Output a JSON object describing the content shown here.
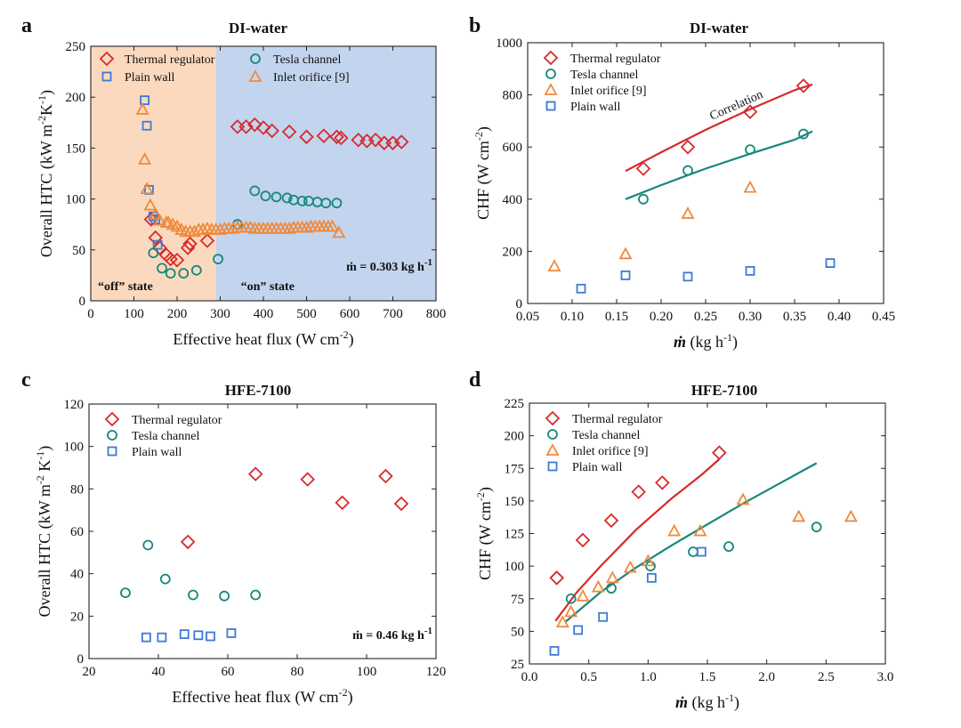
{
  "colors": {
    "thermal": "#d62b2b",
    "tesla": "#17877c",
    "orifice": "#ee8a3c",
    "plain": "#3b7ad6",
    "off_bg": "#fbd9bf",
    "on_bg": "#c3d4ee"
  },
  "chart_data": [
    {
      "panel": "a",
      "type": "scatter",
      "title": "DI-water",
      "xlabel": "Effective heat flux (W cm",
      "xlabel_sup": "-2",
      "xlabel_end": ")",
      "ylabel": "Overall HTC (kW m",
      "ylabel_sup1": "-2",
      "ylabel_mid": "K",
      "ylabel_sup2": "-1",
      "ylabel_end": ")",
      "xlim": [
        0,
        800
      ],
      "ylim": [
        0,
        250
      ],
      "xticks": [
        0,
        100,
        200,
        300,
        400,
        500,
        600,
        700,
        800
      ],
      "yticks": [
        0,
        50,
        100,
        150,
        200,
        250
      ],
      "regions": [
        {
          "label": "“off” state",
          "x0": 0,
          "x1": 290,
          "color_key": "off_bg"
        },
        {
          "label": "“on” state",
          "x0": 290,
          "x1": 800,
          "color_key": "on_bg"
        }
      ],
      "annotation": {
        "text": "ṁ = 0.303 kg h",
        "sup": "-1"
      },
      "legend_layout": "two-column-top",
      "series": [
        {
          "name": "Thermal regulator",
          "marker": "diamond",
          "color_key": "thermal",
          "points": [
            [
              140,
              80
            ],
            [
              150,
              62
            ],
            [
              160,
              52
            ],
            [
              175,
              45
            ],
            [
              185,
              41
            ],
            [
              200,
              40
            ],
            [
              225,
              52
            ],
            [
              230,
              56
            ],
            [
              270,
              59
            ],
            [
              340,
              171
            ],
            [
              360,
              171
            ],
            [
              380,
              173
            ],
            [
              400,
              170
            ],
            [
              420,
              167
            ],
            [
              460,
              166
            ],
            [
              500,
              161
            ],
            [
              540,
              162
            ],
            [
              570,
              161
            ],
            [
              580,
              160
            ],
            [
              620,
              158
            ],
            [
              640,
              157
            ],
            [
              660,
              158
            ],
            [
              680,
              155
            ],
            [
              700,
              155
            ],
            [
              720,
              156
            ]
          ]
        },
        {
          "name": "Plain wall",
          "marker": "square",
          "color_key": "plain",
          "points": [
            [
              125,
              197
            ],
            [
              130,
              172
            ],
            [
              135,
              109
            ],
            [
              145,
              83
            ],
            [
              150,
              80
            ],
            [
              155,
              55
            ]
          ]
        },
        {
          "name": "Tesla channel",
          "marker": "circle",
          "color_key": "tesla",
          "points": [
            [
              145,
              47
            ],
            [
              165,
              32
            ],
            [
              185,
              27
            ],
            [
              215,
              27
            ],
            [
              245,
              30
            ],
            [
              295,
              41
            ],
            [
              340,
              75
            ],
            [
              380,
              108
            ],
            [
              405,
              103
            ],
            [
              430,
              102
            ],
            [
              455,
              101
            ],
            [
              470,
              99
            ],
            [
              490,
              98
            ],
            [
              505,
              98
            ],
            [
              525,
              97
            ],
            [
              545,
              96
            ],
            [
              570,
              96
            ]
          ]
        },
        {
          "name": "Inlet orifice [9]",
          "marker": "triangle",
          "color_key": "orifice",
          "points": [
            [
              120,
              188
            ],
            [
              125,
              139
            ],
            [
              130,
              110
            ],
            [
              138,
              94
            ],
            [
              150,
              85
            ],
            [
              160,
              79
            ],
            [
              175,
              77
            ],
            [
              180,
              77
            ],
            [
              190,
              75
            ],
            [
              200,
              73
            ],
            [
              210,
              70
            ],
            [
              220,
              68
            ],
            [
              230,
              68
            ],
            [
              240,
              68
            ],
            [
              250,
              70
            ],
            [
              260,
              70
            ],
            [
              270,
              71
            ],
            [
              280,
              70
            ],
            [
              290,
              70
            ],
            [
              300,
              70
            ],
            [
              310,
              71
            ],
            [
              320,
              71
            ],
            [
              330,
              71
            ],
            [
              340,
              72
            ],
            [
              350,
              72
            ],
            [
              360,
              72
            ],
            [
              370,
              72
            ],
            [
              380,
              71
            ],
            [
              390,
              71
            ],
            [
              400,
              71
            ],
            [
              410,
              71
            ],
            [
              420,
              71
            ],
            [
              430,
              71
            ],
            [
              440,
              71
            ],
            [
              450,
              71
            ],
            [
              460,
              71
            ],
            [
              470,
              72
            ],
            [
              480,
              72
            ],
            [
              490,
              72
            ],
            [
              500,
              72
            ],
            [
              510,
              73
            ],
            [
              520,
              73
            ],
            [
              530,
              73
            ],
            [
              540,
              73
            ],
            [
              550,
              73
            ],
            [
              560,
              73
            ],
            [
              575,
              67
            ]
          ]
        }
      ]
    },
    {
      "panel": "b",
      "type": "scatter",
      "title": "DI-water",
      "xlabel": "(kg h",
      "xlabel_sup": "-1",
      "xlabel_end": ")",
      "xlabel_symbol": "ṁ",
      "ylabel": "CHF (W cm",
      "ylabel_sup1": "-2",
      "ylabel_end": ")",
      "xlim": [
        0.05,
        0.45
      ],
      "ylim": [
        0,
        1000
      ],
      "xticks": [
        0.05,
        0.1,
        0.15,
        0.2,
        0.25,
        0.3,
        0.35,
        0.4,
        0.45
      ],
      "xtick_labels": [
        "0.05",
        "0.10",
        "0.15",
        "0.20",
        "0.25",
        "0.30",
        "0.35",
        "0.40",
        "0.45"
      ],
      "yticks": [
        0,
        200,
        400,
        600,
        800,
        1000
      ],
      "curve_label": "Correlation",
      "legend_layout": "one-column-top-left",
      "series": [
        {
          "name": "Thermal regulator",
          "marker": "diamond",
          "color_key": "thermal",
          "points": [
            [
              0.18,
              517
            ],
            [
              0.23,
              600
            ],
            [
              0.3,
              735
            ],
            [
              0.36,
              835
            ]
          ]
        },
        {
          "name": "Tesla channel",
          "marker": "circle",
          "color_key": "tesla",
          "points": [
            [
              0.18,
              400
            ],
            [
              0.23,
              510
            ],
            [
              0.3,
              590
            ],
            [
              0.36,
              650
            ]
          ]
        },
        {
          "name": "Inlet orifice [9]",
          "marker": "triangle",
          "color_key": "orifice",
          "points": [
            [
              0.08,
              143
            ],
            [
              0.16,
              190
            ],
            [
              0.23,
              345
            ],
            [
              0.3,
              445
            ]
          ]
        },
        {
          "name": "Plain wall",
          "marker": "square",
          "color_key": "plain",
          "points": [
            [
              0.11,
              57
            ],
            [
              0.16,
              108
            ],
            [
              0.23,
              103
            ],
            [
              0.3,
              125
            ],
            [
              0.39,
              155
            ]
          ]
        }
      ],
      "lines": [
        {
          "name": "Thermal regulator correlation",
          "color_key": "thermal",
          "points": [
            [
              0.16,
              508
            ],
            [
              0.2,
              580
            ],
            [
              0.25,
              666
            ],
            [
              0.3,
              745
            ],
            [
              0.35,
              818
            ],
            [
              0.37,
              840
            ]
          ]
        },
        {
          "name": "Tesla channel correlation",
          "color_key": "tesla",
          "points": [
            [
              0.16,
              400
            ],
            [
              0.2,
              454
            ],
            [
              0.25,
              517
            ],
            [
              0.3,
              574
            ],
            [
              0.35,
              628
            ],
            [
              0.37,
              660
            ]
          ]
        }
      ]
    },
    {
      "panel": "c",
      "type": "scatter",
      "title": "HFE-7100",
      "xlabel": "Effective heat flux (W cm",
      "xlabel_sup": "-2",
      "xlabel_end": ")",
      "ylabel": "Overall HTC (kW m",
      "ylabel_sup1": "-2",
      "ylabel_mid": " K",
      "ylabel_sup2": "-1",
      "ylabel_end": ")",
      "xlim": [
        20,
        120
      ],
      "ylim": [
        0,
        120
      ],
      "xticks": [
        20,
        40,
        60,
        80,
        100,
        120
      ],
      "yticks": [
        0,
        20,
        40,
        60,
        80,
        100,
        120
      ],
      "annotation": {
        "text": "ṁ = 0.46 kg h",
        "sup": "-1"
      },
      "legend_layout": "one-column-top-left",
      "series": [
        {
          "name": "Thermal regulator",
          "marker": "diamond",
          "color_key": "thermal",
          "points": [
            [
              48.5,
              55
            ],
            [
              68,
              87
            ],
            [
              83,
              84.5
            ],
            [
              93,
              73.5
            ],
            [
              105.5,
              86
            ],
            [
              110,
              73
            ]
          ]
        },
        {
          "name": "Tesla channel",
          "marker": "circle",
          "color_key": "tesla",
          "points": [
            [
              30.5,
              31
            ],
            [
              37,
              53.5
            ],
            [
              42,
              37.5
            ],
            [
              50,
              30
            ],
            [
              59,
              29.5
            ],
            [
              68,
              30
            ]
          ]
        },
        {
          "name": "Plain wall",
          "marker": "square",
          "color_key": "plain",
          "points": [
            [
              36.5,
              10
            ],
            [
              41,
              10
            ],
            [
              47.5,
              11.5
            ],
            [
              51.5,
              11
            ],
            [
              55,
              10.5
            ],
            [
              61,
              12
            ]
          ]
        }
      ]
    },
    {
      "panel": "d",
      "type": "scatter",
      "title": "HFE-7100",
      "xlabel": "(kg h",
      "xlabel_sup": "-1",
      "xlabel_end": ")",
      "xlabel_symbol": "ṁ",
      "ylabel": "CHF (W cm",
      "ylabel_sup1": "-2",
      "ylabel_end": ")",
      "xlim": [
        0.0,
        3.0
      ],
      "ylim": [
        25,
        225
      ],
      "xticks": [
        0.0,
        0.5,
        1.0,
        1.5,
        2.0,
        2.5,
        3.0
      ],
      "xtick_labels": [
        "0.0",
        "0.5",
        "1.0",
        "1.5",
        "2.0",
        "2.5",
        "3.0"
      ],
      "yticks": [
        25,
        50,
        75,
        100,
        125,
        150,
        175,
        200,
        225
      ],
      "legend_layout": "one-column-top-left",
      "series": [
        {
          "name": "Thermal regulator",
          "marker": "diamond",
          "color_key": "thermal",
          "points": [
            [
              0.23,
              91
            ],
            [
              0.45,
              120
            ],
            [
              0.69,
              135
            ],
            [
              0.92,
              157
            ],
            [
              1.12,
              164
            ],
            [
              1.6,
              187
            ]
          ]
        },
        {
          "name": "Tesla channel",
          "marker": "circle",
          "color_key": "tesla",
          "points": [
            [
              0.35,
              75
            ],
            [
              0.69,
              83
            ],
            [
              1.02,
              100
            ],
            [
              1.38,
              111
            ],
            [
              1.68,
              115
            ],
            [
              2.42,
              130
            ]
          ]
        },
        {
          "name": "Inlet orifice [9]",
          "marker": "triangle",
          "color_key": "orifice",
          "points": [
            [
              0.28,
              57
            ],
            [
              0.35,
              65
            ],
            [
              0.45,
              77
            ],
            [
              0.58,
              84
            ],
            [
              0.7,
              91
            ],
            [
              0.85,
              99
            ],
            [
              1.0,
              104
            ],
            [
              1.22,
              127
            ],
            [
              1.44,
              127
            ],
            [
              1.8,
              151
            ],
            [
              2.27,
              138
            ],
            [
              2.71,
              138
            ]
          ]
        },
        {
          "name": "Plain wall",
          "marker": "square",
          "color_key": "plain",
          "points": [
            [
              0.21,
              35
            ],
            [
              0.41,
              51
            ],
            [
              0.62,
              61
            ],
            [
              1.03,
              91
            ],
            [
              1.45,
              111
            ]
          ]
        }
      ],
      "lines": [
        {
          "name": "Thermal regulator correlation",
          "color_key": "thermal",
          "points": [
            [
              0.22,
              58
            ],
            [
              0.4,
              80
            ],
            [
              0.6,
              100
            ],
            [
              0.9,
              128
            ],
            [
              1.2,
              152
            ],
            [
              1.45,
              170
            ],
            [
              1.6,
              182
            ]
          ]
        },
        {
          "name": "Tesla channel correlation",
          "color_key": "tesla",
          "points": [
            [
              0.3,
              57
            ],
            [
              0.6,
              80
            ],
            [
              0.9,
              99
            ],
            [
              1.2,
              116
            ],
            [
              1.5,
              132
            ],
            [
              1.8,
              148
            ],
            [
              2.1,
              163
            ],
            [
              2.42,
              179
            ]
          ]
        }
      ]
    }
  ]
}
